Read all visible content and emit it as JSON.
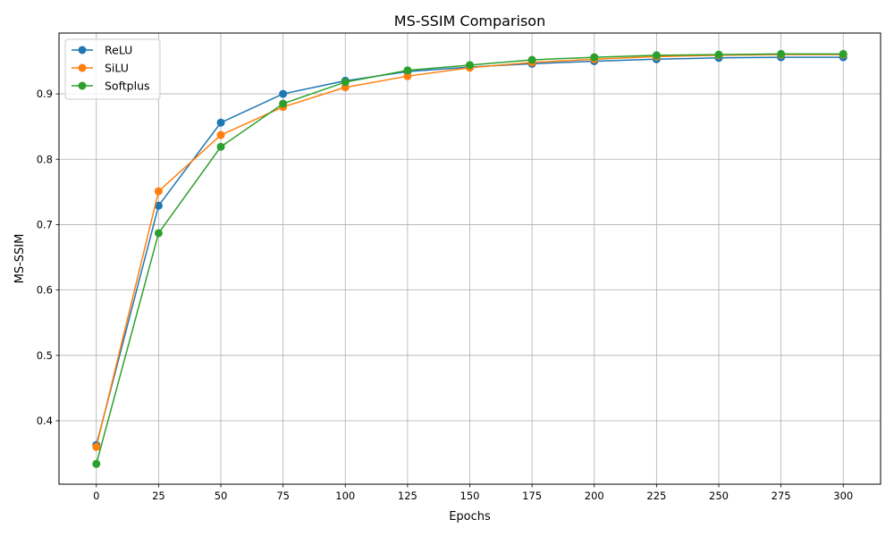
{
  "chart_data": {
    "type": "line",
    "title": "MS-SSIM Comparison",
    "xlabel": "Epochs",
    "ylabel": "MS-SSIM",
    "x": [
      0,
      25,
      50,
      75,
      100,
      125,
      150,
      175,
      200,
      225,
      250,
      275,
      300
    ],
    "xticks": [
      0,
      25,
      50,
      75,
      100,
      125,
      150,
      175,
      200,
      225,
      250,
      275,
      300
    ],
    "yticks": [
      0.4,
      0.5,
      0.6,
      0.7,
      0.8,
      0.9
    ],
    "xlim": [
      -15,
      315
    ],
    "ylim": [
      0.303,
      0.993
    ],
    "grid": true,
    "legend_position": "top-left",
    "series": [
      {
        "name": "ReLU",
        "color": "#1f77b4",
        "values": [
          0.363,
          0.729,
          0.856,
          0.9,
          0.92,
          0.934,
          0.941,
          0.946,
          0.95,
          0.953,
          0.955,
          0.956,
          0.956
        ]
      },
      {
        "name": "SiLU",
        "color": "#ff7f0e",
        "values": [
          0.36,
          0.751,
          0.837,
          0.88,
          0.91,
          0.927,
          0.94,
          0.948,
          0.953,
          0.957,
          0.959,
          0.96,
          0.96
        ]
      },
      {
        "name": "Softplus",
        "color": "#2ca02c",
        "values": [
          0.334,
          0.687,
          0.819,
          0.885,
          0.918,
          0.936,
          0.944,
          0.952,
          0.956,
          0.959,
          0.96,
          0.961,
          0.961
        ]
      }
    ]
  }
}
